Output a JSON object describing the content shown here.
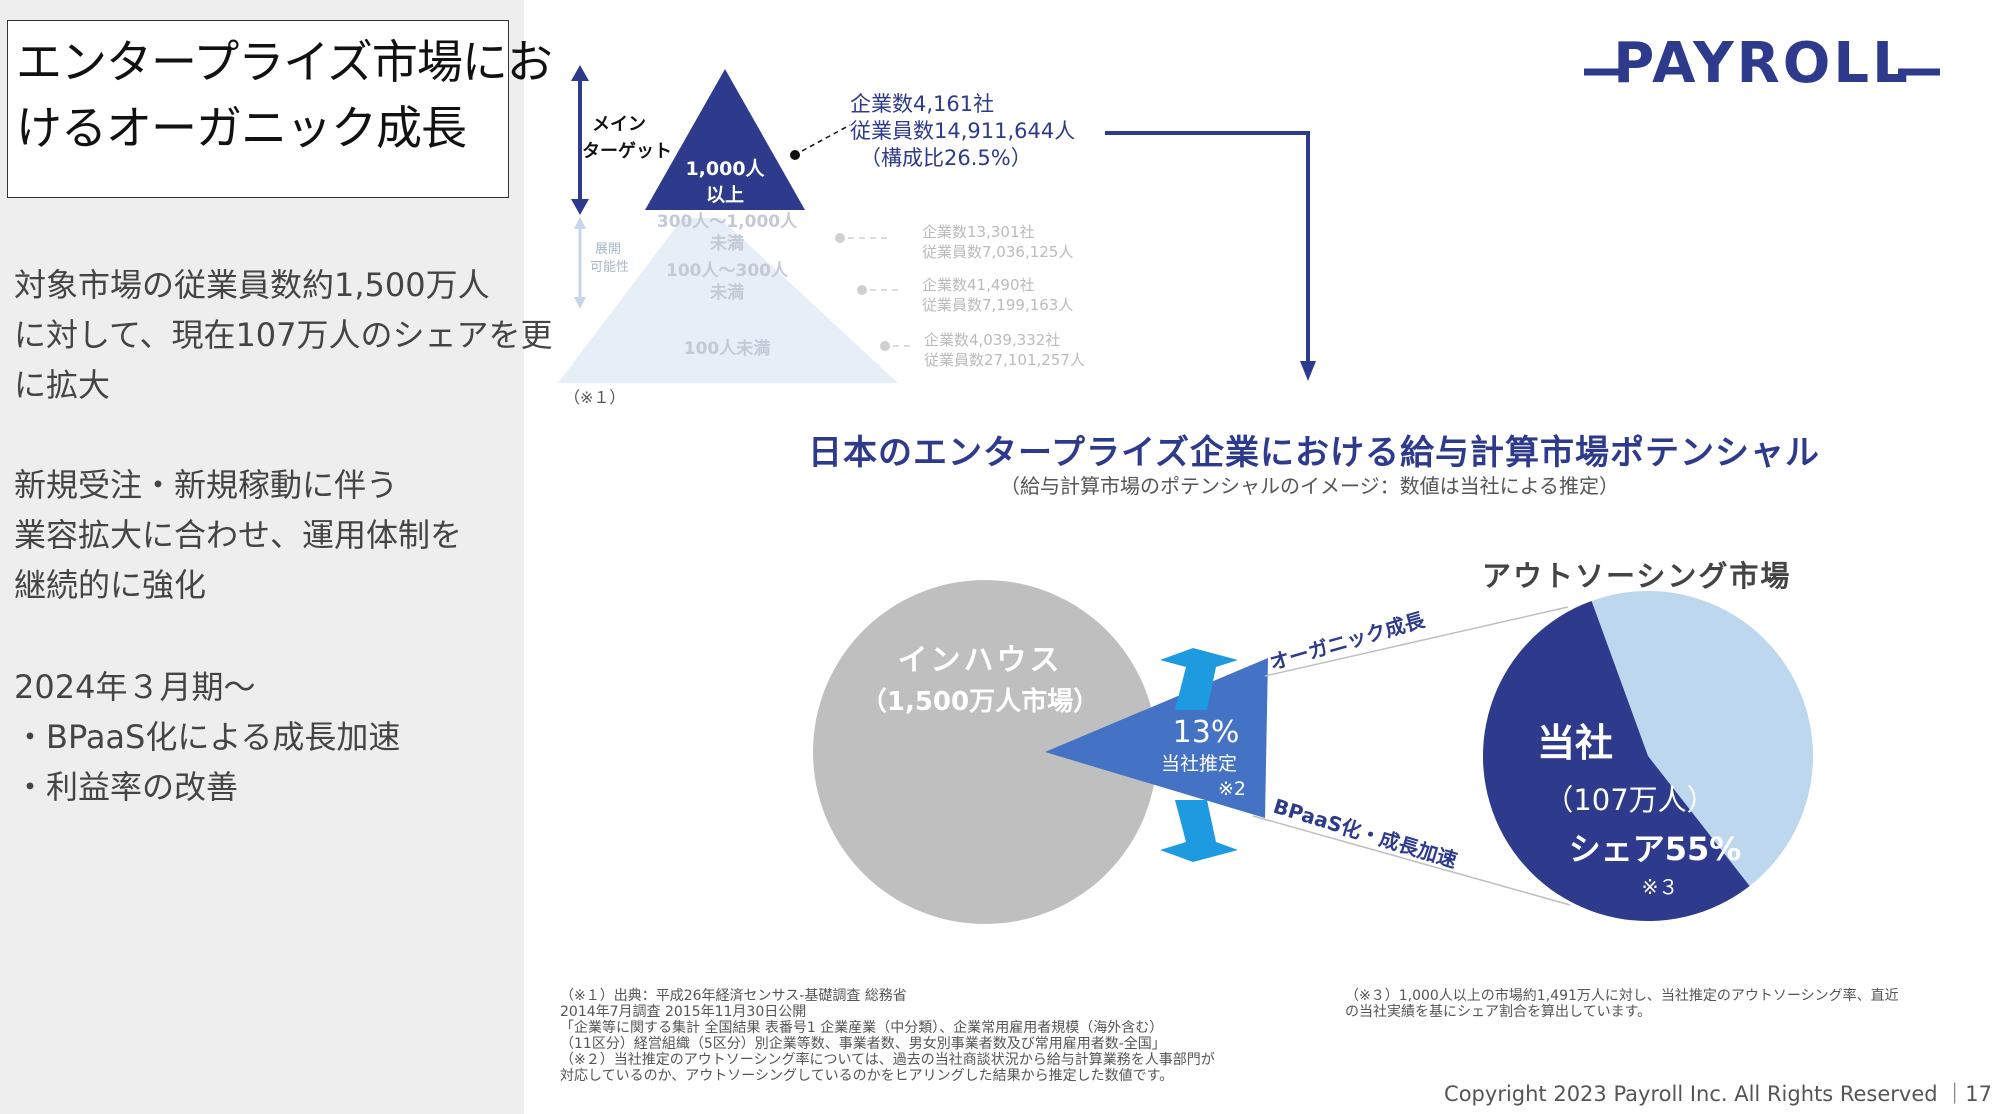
{
  "left": {
    "title_line1": "エンタープライズ市場にお",
    "title_line2": "けるオーガニック成長",
    "para1": [
      "対象市場の従業員数約1,500万人",
      "に対して、現在107万人のシェアを更",
      "に拡大"
    ],
    "para2": [
      "新規受注・新規稼動に伴う",
      "業容拡大に合わせ、運用体制を",
      "継続的に強化"
    ],
    "para3": [
      "2024年３月期～",
      "・BPaaS化による成長加速",
      "・利益率の改善"
    ]
  },
  "logo": {
    "text": "PAYROLL",
    "color": "#2e3a8c"
  },
  "pyramid": {
    "main_target": [
      "メイン",
      "ターゲット"
    ],
    "expand": [
      "展開",
      "可能性"
    ],
    "tiers": [
      {
        "label": [
          "1,000人",
          "以上"
        ],
        "companies": "企業数4,161社",
        "employees": "従業員数14,911,644人",
        "ratio": "（構成比26.5%）"
      },
      {
        "label": [
          "300人～1,000人",
          "未満"
        ],
        "companies": "企業数13,301社",
        "employees": "従業員数7,036,125人"
      },
      {
        "label": [
          "100人～300人",
          "未満"
        ],
        "companies": "企業数41,490社",
        "employees": "従業員数7,199,163人"
      },
      {
        "label": [
          "100人未満"
        ],
        "companies": "企業数4,039,332社",
        "employees": "従業員数27,101,257人"
      }
    ],
    "note": "（※１）"
  },
  "heading": {
    "title": "日本のエンタープライズ企業における給与計算市場ポテンシャル",
    "subtitle": "（給与計算市場のポテンシャルのイメージ：数値は当社による推定）"
  },
  "market": {
    "inhouse_label": [
      "インハウス",
      "（1,500万人市場）"
    ],
    "slice_pct": "13%",
    "slice_label": "当社推定",
    "slice_note": "※2",
    "arrow_top": "オーガニック成長",
    "arrow_bottom": "BPaaS化・成長加速",
    "outsourcing_title": "アウトソーシング市場",
    "company_label": "当社",
    "company_people": "（107万人）",
    "company_share": "シェア55%",
    "company_note": "※３",
    "inhouse_share": 0.87,
    "outsourcing_share": 0.13,
    "company_share_value": 0.55,
    "colors": {
      "navy": "#2e3a8c",
      "inhouse": "#bfbfbf",
      "slice": "#4472c4",
      "light": "#bdd7ee",
      "arrow": "#1e9be0"
    }
  },
  "footnotes": {
    "left": [
      "（※１）出典：平成26年経済センサス-基礎調査 総務省",
      "2014年7月調査  2015年11月30日公開",
      "「企業等に関する集計  全国結果  表番号1  企業産業（中分類）、企業常用雇用者規模（海外含む）",
      "（11区分）経営組織（5区分）別企業等数、事業者数、男女別事業者数及び常用雇用者数-全国」",
      "（※２）当社推定のアウトソーシング率については、過去の当社商談状況から給与計算業務を人事部門が",
      "対応しているのか、アウトソーシングしているのかをヒアリングした結果から推定した数値です。"
    ],
    "right": [
      "（※３）1,000人以上の市場約1,491万人に対し、当社推定のアウトソーシング率、直近",
      "の当社実績を基にシェア割合を算出しています。"
    ]
  },
  "copyright": "Copyright 2023 Payroll Inc. All Rights Reserved ｜17"
}
